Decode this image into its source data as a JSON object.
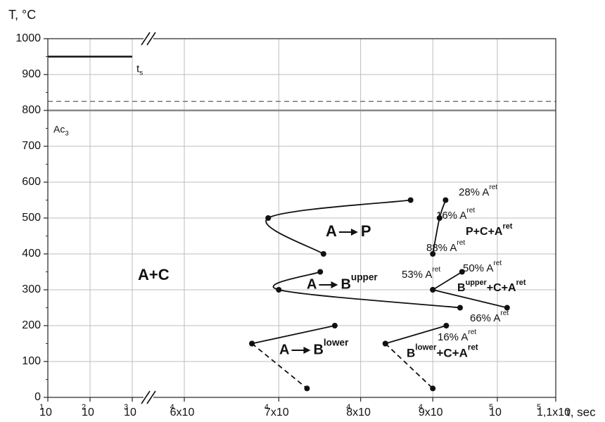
{
  "chart_data": {
    "type": "line",
    "y_label": "T, °C",
    "x_label": "τ, sec",
    "ylim": [
      0,
      1000
    ],
    "yticks": [
      0,
      100,
      200,
      300,
      400,
      500,
      600,
      700,
      800,
      900,
      1000
    ],
    "grid": true,
    "x_segments": [
      {
        "xlim": [
          10,
          1000
        ],
        "log": true,
        "xticks": [
          {
            "value": 10,
            "label": "10",
            "exp": "1"
          },
          {
            "value": 100,
            "label": "10",
            "exp": "2"
          },
          {
            "value": 1000,
            "label": "10",
            "exp": "3"
          }
        ]
      },
      {
        "xlim": [
          60000,
          110000
        ],
        "log": true,
        "xticks": [
          {
            "value": 60000,
            "label": "6x10",
            "exp": "4"
          },
          {
            "value": 70000,
            "label": "7x10",
            "exp": "4"
          },
          {
            "value": 80000,
            "label": "8x10",
            "exp": "4"
          },
          {
            "value": 90000,
            "label": "9x10",
            "exp": "4"
          },
          {
            "value": 100000,
            "label": "10",
            "exp": "5"
          },
          {
            "value": 110000,
            "label": "1,1x10",
            "exp": "5"
          }
        ]
      }
    ],
    "reference_lines": [
      {
        "y": 950,
        "x": [
          10,
          1000
        ],
        "style": "solid",
        "color": "#111111",
        "label": [
          "t",
          "s"
        ]
      },
      {
        "y": 825,
        "style": "dashed",
        "color": "#777777"
      },
      {
        "y": 800,
        "style": "solid",
        "color": "#888888",
        "label": [
          "Ac",
          "3"
        ]
      }
    ],
    "series": [
      {
        "x": [
          86800,
          68800,
          75300
        ],
        "values": [
          550,
          500,
          400
        ],
        "color": "#111111",
        "style": "solid"
      },
      {
        "x": [
          74900,
          70000,
          94100
        ],
        "values": [
          350,
          300,
          250
        ],
        "color": "#111111",
        "style": "solid"
      },
      {
        "x": [
          76700,
          67000
        ],
        "values": [
          200,
          150
        ],
        "color": "#111111",
        "style": "solid"
      },
      {
        "x": [
          67000,
          73300
        ],
        "values": [
          150,
          25
        ],
        "color": "#111111",
        "style": "dashed"
      },
      {
        "x": [
          91900,
          91000,
          90000
        ],
        "values": [
          550,
          500,
          400
        ],
        "color": "#111111",
        "style": "solid"
      },
      {
        "x": [
          90000,
          94400
        ],
        "values": [
          300,
          350
        ],
        "color": "#111111",
        "style": "solid"
      },
      {
        "x": [
          90000,
          101600
        ],
        "values": [
          300,
          250
        ],
        "color": "#111111",
        "style": "solid"
      },
      {
        "x": [
          92000,
          83300
        ],
        "values": [
          200,
          150
        ],
        "color": "#111111",
        "style": "solid"
      },
      {
        "x": [
          83300,
          90000
        ],
        "values": [
          150,
          25
        ],
        "color": "#111111",
        "style": "dashed"
      }
    ],
    "annotations": [
      {
        "parts": [
          "A+C"
        ]
      },
      {
        "parts": [
          "A",
          "P"
        ]
      },
      {
        "parts": [
          "A",
          "B",
          "upper"
        ]
      },
      {
        "parts": [
          "P+C+A",
          "ret"
        ]
      },
      {
        "parts": [
          "B",
          "upper",
          "+C+A",
          "ret"
        ]
      },
      {
        "parts": [
          "A",
          "B",
          "lower"
        ]
      },
      {
        "parts": [
          "B",
          "lower",
          "+C+A",
          "ret"
        ]
      },
      {
        "parts": [
          "28% A",
          "ret"
        ]
      },
      {
        "parts": [
          "16% A",
          "ret"
        ]
      },
      {
        "parts": [
          "88% A",
          "ret"
        ]
      },
      {
        "parts": [
          "53% A",
          "ret"
        ]
      },
      {
        "parts": [
          "50% A",
          "ret"
        ]
      },
      {
        "parts": [
          "66% A",
          "ret"
        ]
      },
      {
        "parts": [
          "16% A",
          "ret"
        ]
      }
    ]
  }
}
